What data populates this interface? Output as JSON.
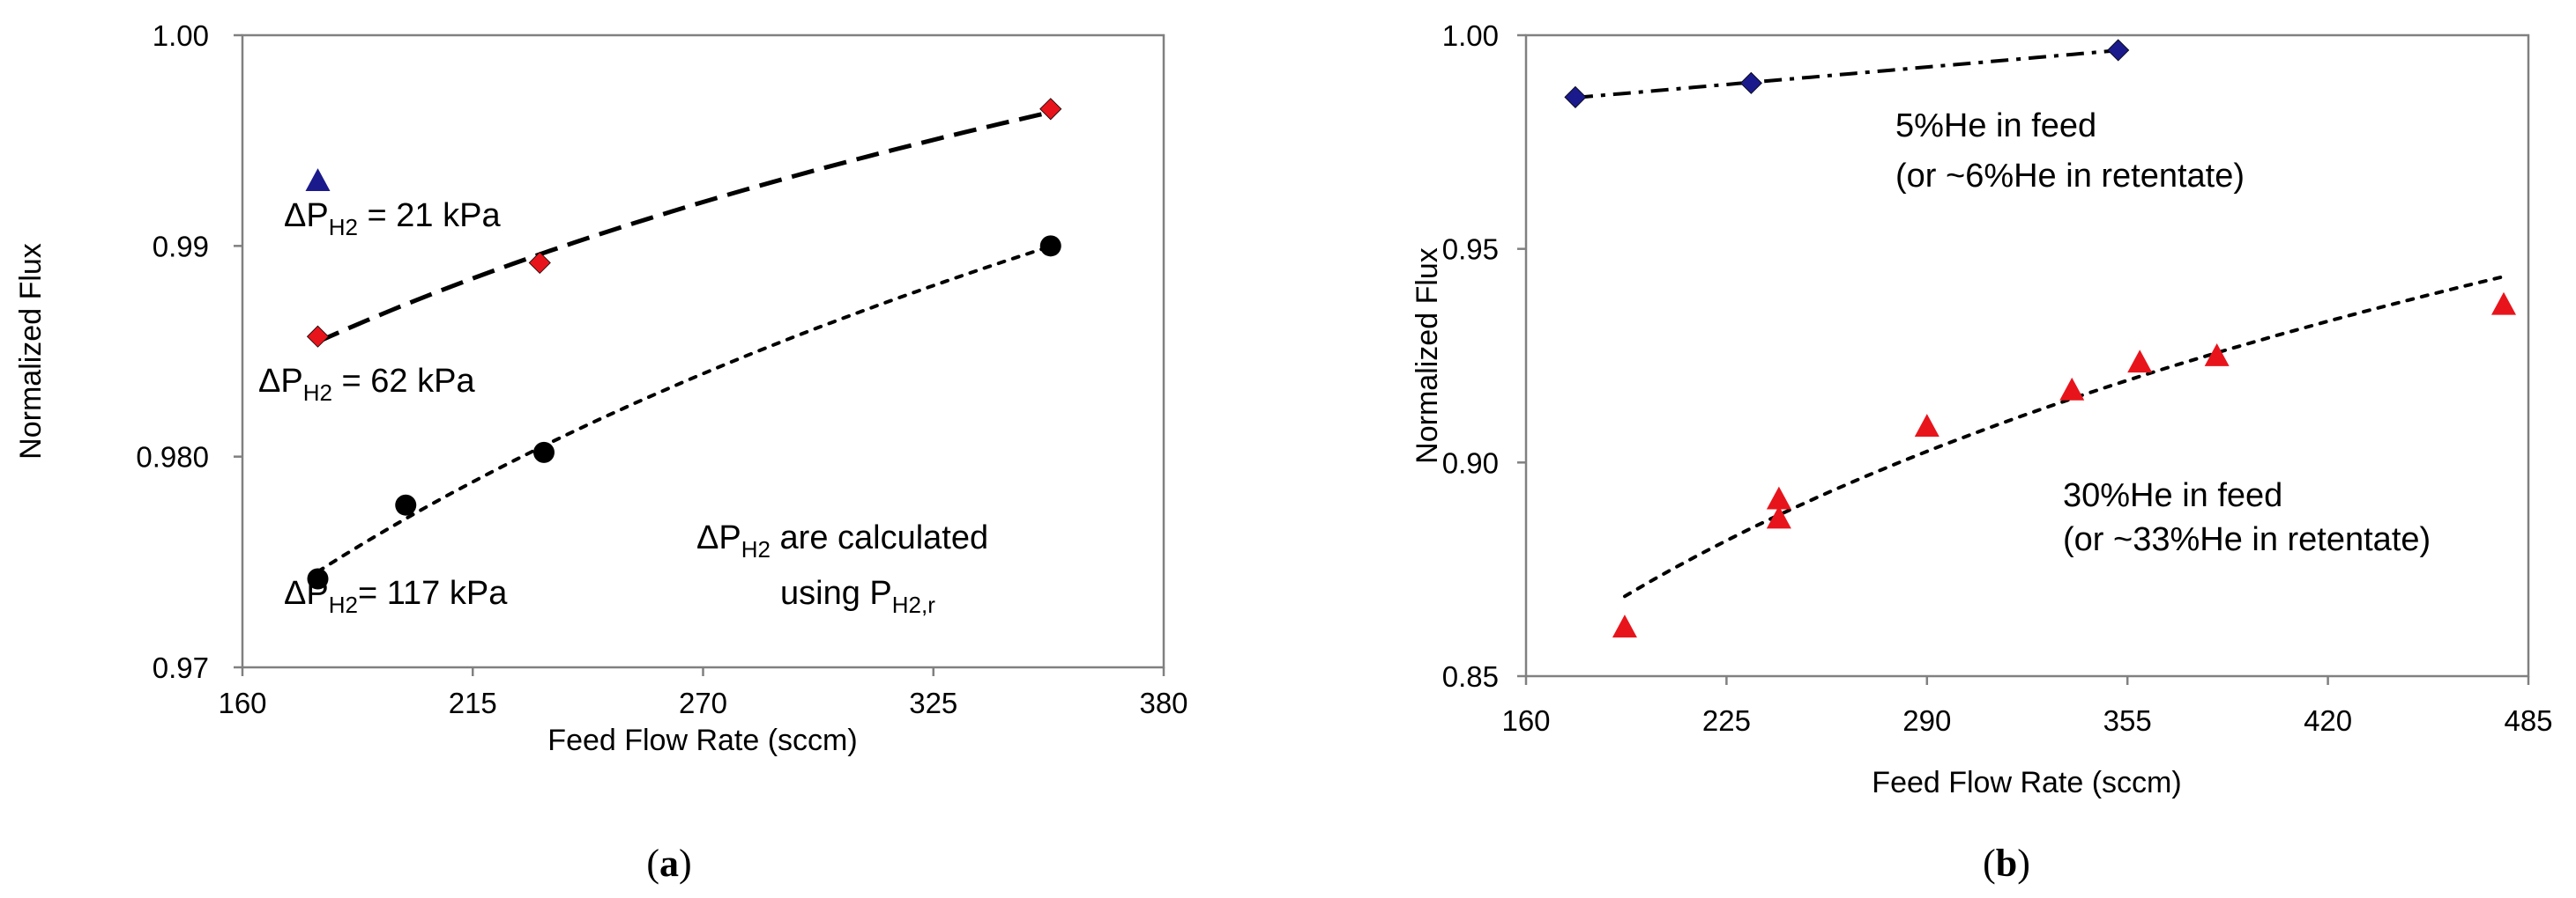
{
  "chart_data": [
    {
      "panel": "a",
      "type": "scatter",
      "caption_letter": "a",
      "xlabel": "Feed Flow Rate (sccm)",
      "ylabel": "Normalized Flux",
      "xlim": [
        160,
        380
      ],
      "ylim": [
        0.97,
        1.0
      ],
      "x_ticks": [
        160,
        215,
        270,
        325,
        380
      ],
      "x_tick_labels": [
        "160",
        "215",
        "270",
        "325",
        "380"
      ],
      "y_ticks": [
        0.97,
        0.98,
        0.99,
        1.0
      ],
      "y_tick_labels": [
        "0.97",
        "0.980",
        "0.99",
        "1.00"
      ],
      "grid": false,
      "series": [
        {
          "name": "ΔP_H2 = 21 kPa",
          "marker": "triangle",
          "color": "#1a1a8c",
          "x": [
            178
          ],
          "y": [
            0.9931
          ]
        },
        {
          "name": "ΔP_H2 = 62 kPa",
          "marker": "diamond",
          "color": "#e8141b",
          "x": [
            178,
            231,
            353
          ],
          "y": [
            0.9857,
            0.9892,
            0.9965
          ]
        },
        {
          "name": "ΔP_H2 = 117 kPa",
          "marker": "circle",
          "color": "#000000",
          "x": [
            178,
            199,
            232,
            353
          ],
          "y": [
            0.9742,
            0.9777,
            0.9802,
            0.99
          ]
        }
      ],
      "trend_lines": [
        {
          "series": "ΔP_H2 = 62 kPa",
          "style": "dashed",
          "x": [
            178,
            353
          ],
          "fit": "log"
        },
        {
          "series": "ΔP_H2 = 117 kPa",
          "style": "dotted",
          "x": [
            178,
            353
          ],
          "fit": "log"
        }
      ],
      "annotations": [
        {
          "id": "dp21",
          "prefix": "ΔP",
          "sub": "H2",
          "suffix": " = 21 kPa"
        },
        {
          "id": "dp62",
          "prefix": "ΔP",
          "sub": "H2",
          "suffix": " = 62 kPa"
        },
        {
          "id": "dp117",
          "prefix": "ΔP",
          "sub": "H2",
          "suffix": "= 117 kPa"
        },
        {
          "id": "calc1",
          "prefix": "ΔP",
          "sub": "H2",
          "suffix": " are calculated"
        },
        {
          "id": "calc2",
          "prefix": "using  P",
          "sub": "H2,r",
          "suffix": ""
        }
      ]
    },
    {
      "panel": "b",
      "type": "scatter",
      "caption_letter": "b",
      "xlabel": "Feed Flow Rate (sccm)",
      "ylabel": "Normalized Flux",
      "xlim": [
        160,
        485
      ],
      "ylim": [
        0.85,
        1.0
      ],
      "x_ticks": [
        160,
        225,
        290,
        355,
        420,
        485
      ],
      "x_tick_labels": [
        "160",
        "225",
        "290",
        "355",
        "420",
        "485"
      ],
      "y_ticks": [
        0.85,
        0.9,
        0.95,
        1.0
      ],
      "y_tick_labels": [
        "0.85",
        "0.90",
        "0.95",
        "1.00"
      ],
      "grid": false,
      "series": [
        {
          "name": "5%He in feed",
          "marker": "diamond",
          "color": "#1a1a8c",
          "x": [
            176,
            233,
            352
          ],
          "y": [
            0.9855,
            0.9888,
            0.9965
          ]
        },
        {
          "name": "30%He in feed",
          "marker": "triangle",
          "color": "#e8141b",
          "x": [
            192,
            242,
            242,
            290,
            337,
            359,
            384,
            477
          ],
          "y": [
            0.8615,
            0.8915,
            0.887,
            0.9085,
            0.917,
            0.9235,
            0.925,
            0.937
          ]
        }
      ],
      "trend_lines": [
        {
          "series": "5%He in feed",
          "style": "dashdot",
          "x": [
            176,
            352
          ],
          "fit": "linear"
        },
        {
          "series": "30%He in feed",
          "style": "dotted",
          "x": [
            192,
            477
          ],
          "fit": "log"
        }
      ],
      "annotations": [
        {
          "id": "he5a",
          "text": "5%He in feed"
        },
        {
          "id": "he5b",
          "text": "(or ~6%He in retentate)"
        },
        {
          "id": "he30a",
          "text": "30%He in feed"
        },
        {
          "id": "he30b",
          "text": "(or ~33%He in retentate)"
        }
      ]
    }
  ]
}
